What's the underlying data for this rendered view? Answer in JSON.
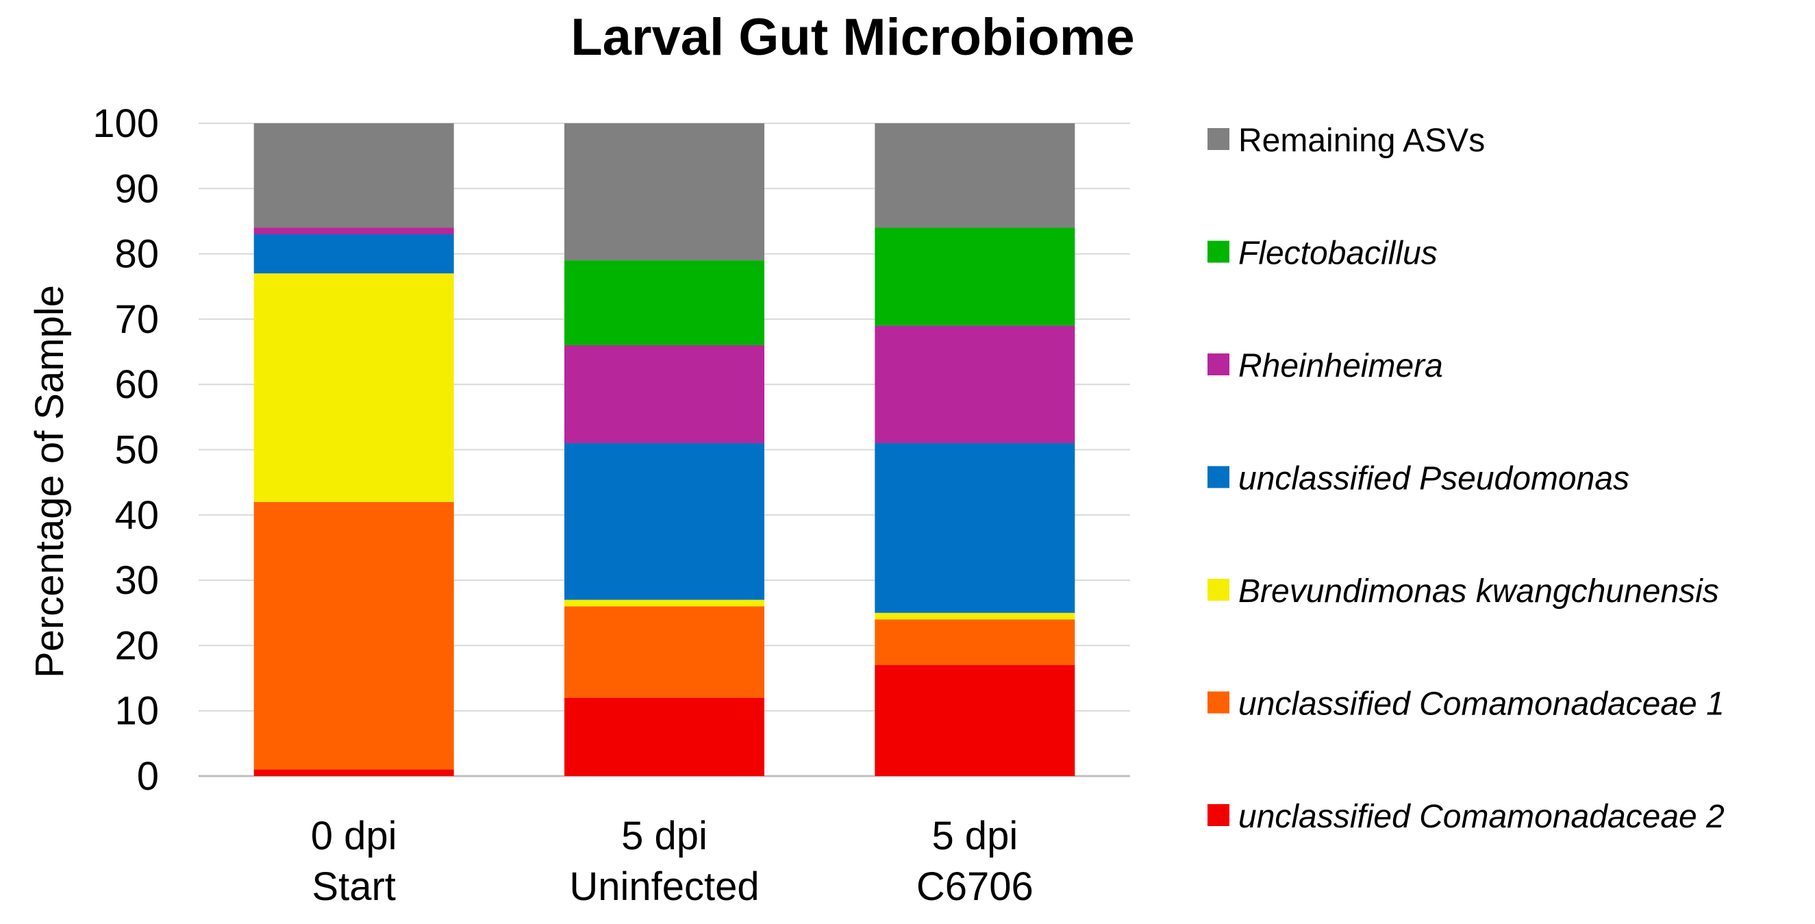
{
  "chart_data": {
    "type": "bar",
    "stacked": true,
    "title": "Larval Gut Microbiome",
    "xlabel": "",
    "ylabel": "Percentage of Sample",
    "ylim": [
      0,
      100
    ],
    "yticks": [
      0,
      10,
      20,
      30,
      40,
      50,
      60,
      70,
      80,
      90,
      100
    ],
    "grid": true,
    "legend_position": "right",
    "categories": [
      [
        "0 dpi",
        "Start"
      ],
      [
        "5 dpi",
        "Uninfected"
      ],
      [
        "5 dpi",
        "C6706"
      ]
    ],
    "series": [
      {
        "name": "unclassified Comamonadaceae 2",
        "color": "#f20000",
        "italic": true,
        "values": [
          1,
          12,
          17
        ]
      },
      {
        "name": "unclassified Comamonadaceae 1",
        "color": "#ff6100",
        "italic": true,
        "values": [
          41,
          14,
          7
        ]
      },
      {
        "name": "Brevundimonas kwangchunensis",
        "color": "#f5ee00",
        "italic": true,
        "values": [
          35,
          1,
          1
        ]
      },
      {
        "name": "unclassified Pseudomonas",
        "color": "#0071c5",
        "italic": true,
        "values": [
          6,
          24,
          26
        ]
      },
      {
        "name": "Rheinheimera",
        "color": "#b7279b",
        "italic": true,
        "values": [
          1,
          15,
          18
        ]
      },
      {
        "name": "Flectobacillus",
        "color": "#00b400",
        "italic": true,
        "values": [
          0,
          13,
          15
        ]
      },
      {
        "name": "Remaining ASVs",
        "color": "#808080",
        "italic": false,
        "values": [
          16,
          21,
          16
        ]
      }
    ]
  }
}
